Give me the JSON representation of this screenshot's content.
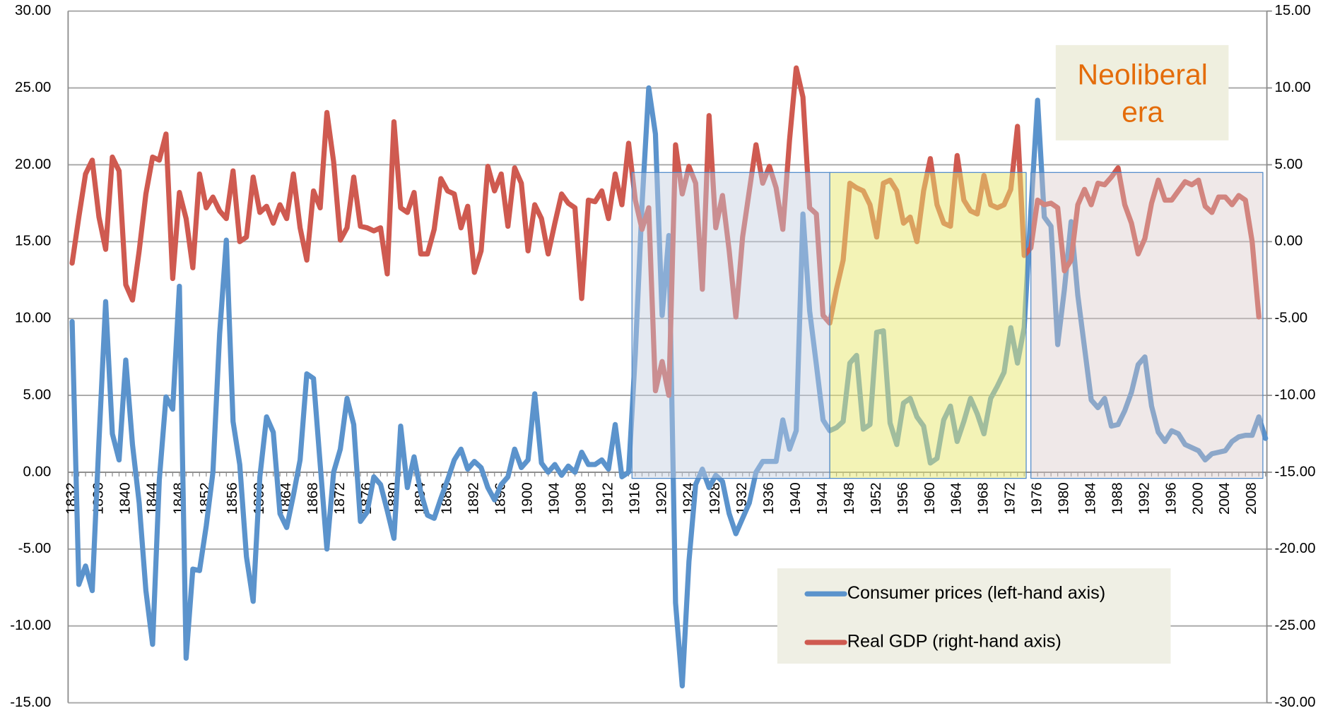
{
  "chart_data": {
    "type": "line",
    "x": [
      1832,
      1833,
      1834,
      1835,
      1836,
      1837,
      1838,
      1839,
      1840,
      1841,
      1842,
      1843,
      1844,
      1845,
      1846,
      1847,
      1848,
      1849,
      1850,
      1851,
      1852,
      1853,
      1854,
      1855,
      1856,
      1857,
      1858,
      1859,
      1860,
      1861,
      1862,
      1863,
      1864,
      1865,
      1866,
      1867,
      1868,
      1869,
      1870,
      1871,
      1872,
      1873,
      1874,
      1875,
      1876,
      1877,
      1878,
      1879,
      1880,
      1881,
      1882,
      1883,
      1884,
      1885,
      1886,
      1887,
      1888,
      1889,
      1890,
      1891,
      1892,
      1893,
      1894,
      1895,
      1896,
      1897,
      1898,
      1899,
      1900,
      1901,
      1902,
      1903,
      1904,
      1905,
      1906,
      1907,
      1908,
      1909,
      1910,
      1911,
      1912,
      1913,
      1914,
      1915,
      1916,
      1917,
      1918,
      1919,
      1920,
      1921,
      1922,
      1923,
      1924,
      1925,
      1926,
      1927,
      1928,
      1929,
      1930,
      1931,
      1932,
      1933,
      1934,
      1935,
      1936,
      1937,
      1938,
      1939,
      1940,
      1941,
      1942,
      1943,
      1944,
      1945,
      1946,
      1947,
      1948,
      1949,
      1950,
      1951,
      1952,
      1953,
      1954,
      1955,
      1956,
      1957,
      1958,
      1959,
      1960,
      1961,
      1962,
      1963,
      1964,
      1965,
      1966,
      1967,
      1968,
      1969,
      1970,
      1971,
      1972,
      1973,
      1974,
      1975,
      1976,
      1977,
      1978,
      1979,
      1980,
      1981,
      1982,
      1983,
      1984,
      1985,
      1986,
      1987,
      1988,
      1989,
      1990,
      1991,
      1992,
      1993,
      1994,
      1995,
      1996,
      1997,
      1998,
      1999,
      2000,
      2001,
      2002,
      2003,
      2004,
      2005,
      2006,
      2007,
      2008,
      2009,
      2010
    ],
    "series": [
      {
        "name": "Consumer prices (left-hand axis)",
        "color": "#5b93cc",
        "axis": "y",
        "values": [
          9.8,
          -7.3,
          -6.1,
          -7.7,
          2.0,
          11.1,
          2.5,
          0.8,
          7.3,
          1.8,
          -2.0,
          -7.7,
          -11.2,
          -0.5,
          4.9,
          4.1,
          12.1,
          -12.1,
          -6.3,
          -6.4,
          -3.5,
          0.0,
          9.0,
          15.1,
          3.3,
          0.5,
          -5.5,
          -8.4,
          -0.3,
          3.6,
          2.6,
          -2.7,
          -3.6,
          -1.5,
          0.8,
          6.4,
          6.1,
          0.5,
          -5.0,
          0.0,
          1.5,
          4.8,
          3.1,
          -3.2,
          -2.6,
          -0.3,
          -0.8,
          -2.5,
          -4.3,
          3.0,
          -1.0,
          1.0,
          -1.3,
          -2.8,
          -3.0,
          -1.7,
          -0.5,
          0.8,
          1.5,
          0.2,
          0.7,
          0.3,
          -1.0,
          -1.8,
          -0.8,
          -0.3,
          1.5,
          0.3,
          0.8,
          5.1,
          0.6,
          0.0,
          0.5,
          -0.2,
          0.4,
          0.0,
          1.3,
          0.5,
          0.5,
          0.8,
          0.2,
          3.1,
          -0.3,
          0.0,
          7.7,
          17.4,
          25.0,
          22.0,
          10.2,
          15.4,
          -8.5,
          -13.9,
          -5.8,
          -0.8,
          0.2,
          -1.0,
          -0.2,
          -0.6,
          -2.7,
          -4.0,
          -3.0,
          -2.0,
          0.0,
          0.7,
          0.7,
          0.7,
          3.4,
          1.5,
          2.7,
          16.8,
          10.5,
          7.0,
          3.4,
          2.7,
          2.9,
          3.3,
          7.1,
          7.6,
          2.8,
          3.1,
          9.1,
          9.2,
          3.2,
          1.8,
          4.5,
          4.8,
          3.6,
          3.0,
          0.6,
          0.9,
          3.4,
          4.3,
          2.0,
          3.3,
          4.8,
          3.8,
          2.5,
          4.8,
          5.6,
          6.5,
          9.4,
          7.1,
          9.4,
          17.0,
          24.2,
          16.6,
          16.0,
          8.3,
          11.9,
          16.3,
          11.5,
          8.1,
          4.7,
          4.2,
          4.8,
          3.0,
          3.1,
          4.0,
          5.2,
          7.0,
          7.5,
          4.3,
          2.6,
          2.0,
          2.7,
          2.5,
          1.8,
          1.6,
          1.4,
          0.8,
          1.2,
          1.3,
          1.4,
          2.0,
          2.3,
          2.4,
          2.4,
          3.6,
          2.2
        ]
      },
      {
        "name": "Real GDP (right-hand axis)",
        "color": "#cf5a50",
        "axis": "y2",
        "values": [
          -1.4,
          1.6,
          4.4,
          5.3,
          1.6,
          -0.5,
          5.5,
          4.6,
          -2.8,
          -3.8,
          -0.6,
          3.1,
          5.5,
          5.3,
          7.0,
          -2.4,
          3.2,
          1.5,
          -1.7,
          4.4,
          2.2,
          2.9,
          2.0,
          1.5,
          4.6,
          0.0,
          0.3,
          4.2,
          1.9,
          2.3,
          1.2,
          2.4,
          1.5,
          4.4,
          0.9,
          -1.2,
          3.3,
          2.2,
          8.4,
          5.2,
          0.1,
          0.9,
          4.2,
          1.0,
          0.9,
          0.7,
          0.9,
          -2.1,
          7.8,
          2.2,
          1.9,
          3.2,
          -0.8,
          -0.8,
          0.8,
          4.1,
          3.3,
          3.1,
          0.9,
          2.3,
          -2.0,
          -0.6,
          4.9,
          3.3,
          4.4,
          1.0,
          4.8,
          3.8,
          -0.6,
          2.4,
          1.5,
          -0.8,
          1.2,
          3.1,
          2.5,
          2.2,
          -3.7,
          2.7,
          2.6,
          3.3,
          1.5,
          4.4,
          2.4,
          6.4,
          2.7,
          0.8,
          2.2,
          -9.7,
          -7.8,
          -10.0,
          6.3,
          3.1,
          4.9,
          3.8,
          -3.1,
          8.2,
          0.9,
          3.0,
          -0.6,
          -4.9,
          0.3,
          3.3,
          6.3,
          3.8,
          4.9,
          3.5,
          0.8,
          6.6,
          11.3,
          9.4,
          2.2,
          1.8,
          -4.8,
          -5.3,
          -3.1,
          -1.2,
          3.8,
          3.5,
          3.3,
          2.4,
          0.3,
          3.8,
          4.0,
          3.3,
          1.2,
          1.6,
          0.0,
          3.3,
          5.4,
          2.4,
          1.2,
          1.0,
          5.6,
          2.7,
          2.0,
          1.8,
          4.3,
          2.4,
          2.2,
          2.4,
          3.4,
          7.5,
          -0.9,
          -0.4,
          2.7,
          2.4,
          2.5,
          2.2,
          -1.9,
          -1.2,
          2.4,
          3.4,
          2.4,
          3.8,
          3.7,
          4.2,
          4.8,
          2.4,
          1.2,
          -0.8,
          0.2,
          2.5,
          4.0,
          2.7,
          2.7,
          3.3,
          3.9,
          3.7,
          4.0,
          2.3,
          1.9,
          2.9,
          2.9,
          2.4,
          3.0,
          2.7,
          0.0,
          -4.9,
          null
        ]
      }
    ],
    "xlim": [
      1831.4,
      2010.2
    ],
    "xticks": [
      1832,
      1836,
      1840,
      1844,
      1848,
      1852,
      1856,
      1860,
      1864,
      1868,
      1872,
      1876,
      1880,
      1884,
      1888,
      1892,
      1896,
      1900,
      1904,
      1908,
      1912,
      1916,
      1920,
      1924,
      1928,
      1932,
      1936,
      1940,
      1944,
      1948,
      1952,
      1956,
      1960,
      1964,
      1968,
      1972,
      1976,
      1980,
      1984,
      1988,
      1992,
      1996,
      2000,
      2004,
      2008
    ],
    "ylim": [
      -15,
      30
    ],
    "yticks": [
      {
        "value": -15,
        "label": "-15.00"
      },
      {
        "value": -10,
        "label": "-10.00"
      },
      {
        "value": -5,
        "label": "-5.00"
      },
      {
        "value": 0,
        "label": "0.00"
      },
      {
        "value": 5,
        "label": "5.00"
      },
      {
        "value": 10,
        "label": "10.00"
      },
      {
        "value": 15,
        "label": "15.00"
      },
      {
        "value": 20,
        "label": "20.00"
      },
      {
        "value": 25,
        "label": "25.00"
      },
      {
        "value": 30,
        "label": "30.00"
      }
    ],
    "y2lim": [
      -30,
      15
    ],
    "y2ticks": [
      {
        "value": -30,
        "label": "-30.00"
      },
      {
        "value": -25,
        "label": "-25.00"
      },
      {
        "value": -20,
        "label": "-20.00"
      },
      {
        "value": -15,
        "label": "-15.00"
      },
      {
        "value": -10,
        "label": "-10.00"
      },
      {
        "value": -5,
        "label": "-5.00"
      },
      {
        "value": 0,
        "label": "0.00"
      },
      {
        "value": 5,
        "label": "5.00"
      },
      {
        "value": 10,
        "label": "10.00"
      },
      {
        "value": 15,
        "label": "15.00"
      }
    ],
    "grid": true,
    "legend": "lower right",
    "shaded_periods": [
      {
        "start": 1915.5,
        "end": 1945,
        "color": "rgba(196,206,224,0.45)"
      },
      {
        "start": 1945,
        "end": 1974.3,
        "color": "rgba(232,232,110,0.5)"
      },
      {
        "start": 1975,
        "end": 2009.6,
        "color": "rgba(214,198,198,0.4)"
      }
    ],
    "shade_ylim": [
      -0.4,
      19.5
    ],
    "annotation_lines": [
      "Neoliberal",
      "era"
    ]
  }
}
